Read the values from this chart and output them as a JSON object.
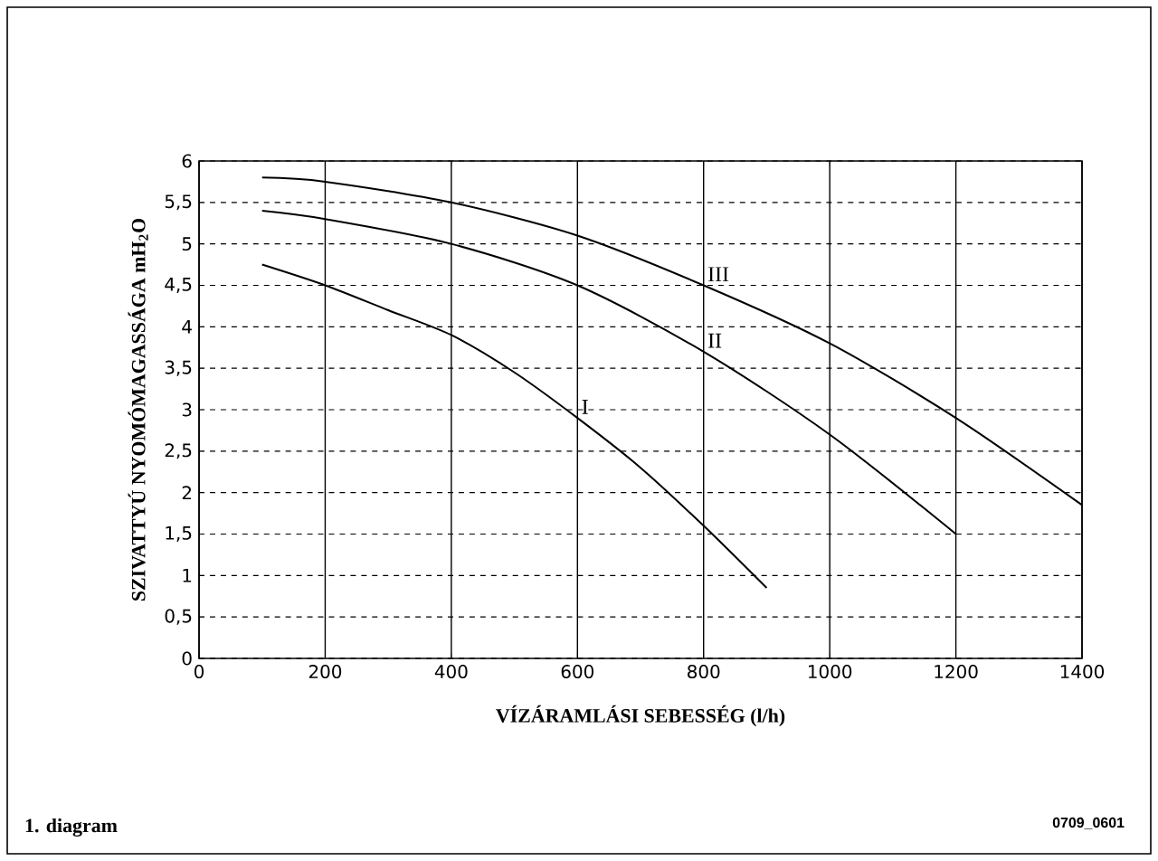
{
  "chart_data": {
    "type": "line",
    "xlabel": "VÍZÁRAMLÁSI SEBESSÉG (l/h)",
    "ylabel": "SZIVATTYÚ NYOMÓMAGASSÁGA mH$_{2}$O",
    "xlim": [
      0,
      1400
    ],
    "xticks": [
      0,
      200,
      400,
      600,
      800,
      1000,
      1200,
      1400
    ],
    "ylim": [
      0,
      6
    ],
    "yticks": [
      0,
      {
        "value": 0.5,
        "label": "0,5"
      },
      1,
      {
        "value": 1.5,
        "label": "1,5"
      },
      2,
      {
        "value": 2.5,
        "label": "2,5"
      },
      3,
      {
        "value": 3.5,
        "label": "3,5"
      },
      4,
      {
        "value": 4.5,
        "label": "4,5"
      },
      5,
      {
        "value": 5.5,
        "label": "5,5"
      },
      6
    ],
    "grid": true,
    "marker": "none",
    "line_style": "solid",
    "series": [
      {
        "name": "I",
        "color": "#000000",
        "x": [
          100,
          200,
          300,
          400,
          500,
          600,
          700,
          800,
          900
        ],
        "values": [
          4.75,
          4.5,
          4.2,
          3.9,
          3.45,
          2.9,
          2.3,
          1.6,
          0.85
        ]
      },
      {
        "name": "II",
        "color": "#000000",
        "x": [
          100,
          200,
          400,
          600,
          800,
          1000,
          1200
        ],
        "values": [
          5.4,
          5.3,
          5.0,
          4.5,
          3.7,
          2.7,
          1.5
        ]
      },
      {
        "name": "III",
        "color": "#000000",
        "x": [
          100,
          200,
          400,
          600,
          800,
          1000,
          1200,
          1400
        ],
        "values": [
          5.8,
          5.75,
          5.5,
          5.1,
          4.5,
          3.8,
          2.9,
          1.85
        ]
      }
    ],
    "annotations": [
      "1. diagram",
      "0709_0601"
    ]
  }
}
